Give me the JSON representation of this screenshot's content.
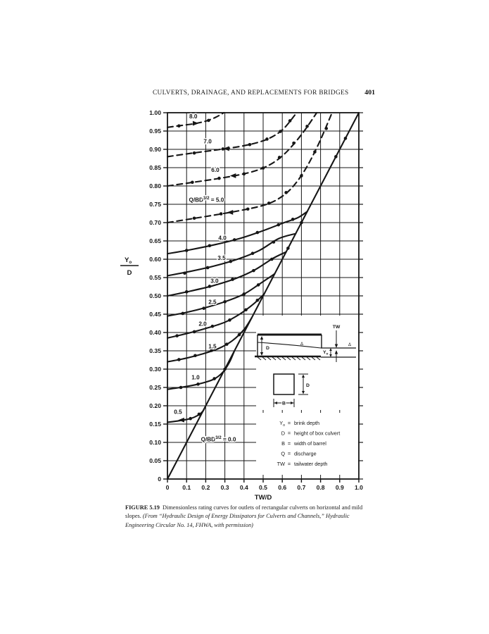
{
  "page": {
    "header": {
      "title": "CULVERTS, DRAINAGE, AND REPLACEMENTS FOR BRIDGES",
      "page_number": "401"
    },
    "caption": {
      "label": "FIGURE 5.19",
      "text": "Dimensionless rating curves for outlets of rectangular culverts on horizontal and mild slopes.",
      "source": "(From “Hydraulic Design of Energy Dissipators for Culverts and Channels,” Hydraulic Engineering Circular No. 14, FHWA, with permission)"
    }
  },
  "chart_data": {
    "type": "line",
    "xlabel": "TW/D",
    "ylabel": {
      "num": "Y",
      "num_sub": "o",
      "den": "D"
    },
    "xlim": [
      0,
      1
    ],
    "ylim": [
      0,
      1
    ],
    "x_gridstep": 0.1,
    "y_gridstep": 0.05,
    "grid": true,
    "xticks": [
      "0",
      "0.1",
      "0.2",
      "0.3",
      "0.4",
      "0.5",
      "0.6",
      "0.7",
      "0.8",
      "0.9",
      "1.0"
    ],
    "yticks": [
      "1.00",
      "0.95",
      "0.90",
      "0.85",
      "0.80",
      "0.75",
      "0.70",
      "0.65",
      "0.60",
      "0.55",
      "0.50",
      "0.45",
      "0.40",
      "0.35",
      "0.30",
      "0.25",
      "0.20",
      "0.15",
      "0.10",
      "0.05",
      "0"
    ],
    "series_param": "Q/BD^3/2",
    "series": [
      {
        "name": "0.0",
        "style": "solid",
        "label": {
          "x": 0.175,
          "y": 0.103,
          "pre": "Q/BD",
          "sup": "3/2",
          "post": " = 0.0",
          "anchor": "start"
        },
        "points": [
          [
            0,
            0
          ],
          [
            1,
            1
          ]
        ],
        "dots": [
          [
            0.63,
            0.63
          ],
          [
            0.7,
            0.7
          ],
          [
            0.88,
            0.88
          ],
          [
            0.93,
            0.93
          ]
        ],
        "arrows": []
      },
      {
        "name": "0.5",
        "style": "solid",
        "label": {
          "x": 0.055,
          "y": 0.178,
          "pre": "0.5"
        },
        "points": [
          [
            0,
            0.155
          ],
          [
            0.06,
            0.159
          ],
          [
            0.12,
            0.165
          ],
          [
            0.16,
            0.174
          ],
          [
            0.185,
            0.185
          ],
          [
            0.195,
            0.195
          ]
        ],
        "dots": [
          [
            0.12,
            0.165
          ],
          [
            0.165,
            0.177
          ]
        ],
        "arrows": [
          [
            0.075,
            0.161,
            -1
          ]
        ]
      },
      {
        "name": "1.0",
        "style": "solid",
        "label": {
          "x": 0.147,
          "y": 0.272,
          "pre": "1.0"
        },
        "points": [
          [
            0,
            0.245
          ],
          [
            0.08,
            0.251
          ],
          [
            0.16,
            0.259
          ],
          [
            0.24,
            0.272
          ],
          [
            0.29,
            0.292
          ],
          [
            0.325,
            0.32
          ],
          [
            0.35,
            0.35
          ]
        ],
        "dots": [
          [
            0.07,
            0.25
          ],
          [
            0.16,
            0.259
          ],
          [
            0.245,
            0.274
          ],
          [
            0.3,
            0.3
          ]
        ],
        "arrows": []
      },
      {
        "name": "1.5",
        "style": "solid",
        "label": {
          "x": 0.235,
          "y": 0.357,
          "pre": "1.5"
        },
        "points": [
          [
            0,
            0.32
          ],
          [
            0.09,
            0.329
          ],
          [
            0.18,
            0.341
          ],
          [
            0.27,
            0.357
          ],
          [
            0.34,
            0.378
          ],
          [
            0.4,
            0.408
          ],
          [
            0.44,
            0.44
          ]
        ],
        "dots": [
          [
            0.06,
            0.326
          ],
          [
            0.145,
            0.337
          ],
          [
            0.23,
            0.351
          ],
          [
            0.31,
            0.368
          ],
          [
            0.375,
            0.394
          ]
        ],
        "arrows": []
      },
      {
        "name": "2.0",
        "style": "solid",
        "label": {
          "x": 0.184,
          "y": 0.418,
          "pre": "2.0"
        },
        "points": [
          [
            0,
            0.385
          ],
          [
            0.1,
            0.397
          ],
          [
            0.2,
            0.411
          ],
          [
            0.3,
            0.428
          ],
          [
            0.38,
            0.451
          ],
          [
            0.45,
            0.478
          ],
          [
            0.505,
            0.505
          ]
        ],
        "dots": [
          [
            0.05,
            0.391
          ],
          [
            0.14,
            0.402
          ],
          [
            0.235,
            0.417
          ],
          [
            0.325,
            0.434
          ],
          [
            0.41,
            0.462
          ],
          [
            0.47,
            0.488
          ]
        ],
        "arrows": []
      },
      {
        "name": "2.5",
        "style": "solid",
        "label": {
          "x": 0.235,
          "y": 0.478,
          "pre": "2.5"
        },
        "points": [
          [
            0,
            0.445
          ],
          [
            0.1,
            0.455
          ],
          [
            0.2,
            0.468
          ],
          [
            0.3,
            0.484
          ],
          [
            0.4,
            0.505
          ],
          [
            0.48,
            0.532
          ],
          [
            0.56,
            0.56
          ]
        ],
        "dots": [
          [
            0.08,
            0.452
          ],
          [
            0.19,
            0.466
          ],
          [
            0.3,
            0.484
          ],
          [
            0.4,
            0.505
          ],
          [
            0.475,
            0.53
          ]
        ],
        "arrows": []
      },
      {
        "name": "3.0",
        "style": "solid",
        "label": {
          "x": 0.246,
          "y": 0.536,
          "pre": "3.0"
        },
        "points": [
          [
            0,
            0.5
          ],
          [
            0.12,
            0.513
          ],
          [
            0.24,
            0.528
          ],
          [
            0.36,
            0.548
          ],
          [
            0.46,
            0.572
          ],
          [
            0.55,
            0.602
          ],
          [
            0.62,
            0.62
          ]
        ],
        "dots": [
          [
            0.1,
            0.511
          ],
          [
            0.22,
            0.526
          ],
          [
            0.34,
            0.545
          ],
          [
            0.45,
            0.569
          ],
          [
            0.545,
            0.6
          ]
        ],
        "arrows": []
      },
      {
        "name": "3.5",
        "style": "solid",
        "label": {
          "x": 0.283,
          "y": 0.598,
          "pre": "3.5"
        },
        "points": [
          [
            0,
            0.555
          ],
          [
            0.12,
            0.567
          ],
          [
            0.24,
            0.581
          ],
          [
            0.36,
            0.599
          ],
          [
            0.48,
            0.624
          ],
          [
            0.58,
            0.656
          ],
          [
            0.67,
            0.67
          ]
        ],
        "dots": [
          [
            0.09,
            0.562
          ],
          [
            0.21,
            0.577
          ],
          [
            0.33,
            0.594
          ],
          [
            0.445,
            0.616
          ],
          [
            0.555,
            0.647
          ]
        ],
        "arrows": []
      },
      {
        "name": "4.0",
        "style": "solid",
        "label": {
          "x": 0.287,
          "y": 0.653,
          "pre": "4.0"
        },
        "points": [
          [
            0,
            0.615
          ],
          [
            0.12,
            0.626
          ],
          [
            0.25,
            0.64
          ],
          [
            0.38,
            0.657
          ],
          [
            0.5,
            0.678
          ],
          [
            0.61,
            0.7
          ],
          [
            0.68,
            0.713
          ],
          [
            0.73,
            0.73
          ]
        ],
        "dots": [
          [
            0.1,
            0.624
          ],
          [
            0.22,
            0.637
          ],
          [
            0.35,
            0.653
          ],
          [
            0.47,
            0.673
          ],
          [
            0.58,
            0.694
          ],
          [
            0.655,
            0.709
          ]
        ],
        "arrows": []
      },
      {
        "name": "5.0",
        "style": "dashed",
        "label": {
          "x": 0.112,
          "y": 0.757,
          "pre": "Q/BD",
          "sup": "3/2",
          "post": " = 5.0",
          "anchor": "start"
        },
        "points": [
          [
            0,
            0.7
          ],
          [
            0.12,
            0.71
          ],
          [
            0.25,
            0.721
          ],
          [
            0.38,
            0.733
          ],
          [
            0.5,
            0.747
          ],
          [
            0.58,
            0.765
          ],
          [
            0.65,
            0.795
          ],
          [
            0.72,
            0.845
          ],
          [
            0.79,
            0.915
          ],
          [
            0.86,
            1.0
          ]
        ],
        "dots": [
          [
            0.14,
            0.712
          ],
          [
            0.28,
            0.724
          ],
          [
            0.42,
            0.737
          ],
          [
            0.53,
            0.753
          ],
          [
            0.62,
            0.782
          ],
          [
            0.7,
            0.828
          ],
          [
            0.77,
            0.893
          ],
          [
            0.83,
            0.957
          ]
        ],
        "arrows": [
          [
            0.33,
            0.728,
            -1
          ]
        ]
      },
      {
        "name": "6.0",
        "style": "dashed",
        "label": {
          "x": 0.25,
          "y": 0.838,
          "pre": "6.0"
        },
        "points": [
          [
            0,
            0.8
          ],
          [
            0.12,
            0.809
          ],
          [
            0.25,
            0.819
          ],
          [
            0.38,
            0.831
          ],
          [
            0.48,
            0.845
          ],
          [
            0.56,
            0.866
          ],
          [
            0.63,
            0.897
          ],
          [
            0.71,
            0.947
          ],
          [
            0.78,
            1.0
          ]
        ],
        "dots": [
          [
            0.13,
            0.81
          ],
          [
            0.27,
            0.821
          ],
          [
            0.4,
            0.833
          ],
          [
            0.5,
            0.849
          ],
          [
            0.585,
            0.878
          ],
          [
            0.66,
            0.917
          ],
          [
            0.73,
            0.963
          ]
        ],
        "arrows": [
          [
            0.345,
            0.828,
            -1
          ]
        ]
      },
      {
        "name": "7.0",
        "style": "dashed",
        "label": {
          "x": 0.21,
          "y": 0.916,
          "pre": "7.0"
        },
        "points": [
          [
            0,
            0.88
          ],
          [
            0.12,
            0.889
          ],
          [
            0.25,
            0.898
          ],
          [
            0.38,
            0.908
          ],
          [
            0.48,
            0.92
          ],
          [
            0.55,
            0.935
          ],
          [
            0.61,
            0.958
          ],
          [
            0.675,
            1.0
          ]
        ],
        "dots": [
          [
            0.14,
            0.89
          ],
          [
            0.29,
            0.901
          ],
          [
            0.43,
            0.913
          ],
          [
            0.52,
            0.928
          ],
          [
            0.59,
            0.949
          ],
          [
            0.64,
            0.978
          ]
        ],
        "arrows": [
          [
            0.31,
            0.902,
            -1
          ]
        ]
      },
      {
        "name": "8.0",
        "style": "dashed",
        "label": {
          "x": 0.135,
          "y": 0.985,
          "pre": "8.0"
        },
        "points": [
          [
            0,
            0.96
          ],
          [
            0.07,
            0.965
          ],
          [
            0.14,
            0.97
          ],
          [
            0.2,
            0.977
          ],
          [
            0.25,
            0.987
          ],
          [
            0.295,
            1.0
          ]
        ],
        "dots": [
          [
            0.06,
            0.964
          ],
          [
            0.215,
            0.979
          ]
        ],
        "arrows": [
          [
            0.145,
            0.971,
            1
          ]
        ]
      }
    ],
    "inset": {
      "side_view": {
        "tw_label": "TW",
        "depth_label": "D",
        "brink_base": "Y",
        "brink_sub": "o",
        "surface_marker": "Δ"
      },
      "cross_section": {
        "height_label": "D",
        "width_label": "B"
      }
    },
    "legend": {
      "separator": "=",
      "rows": [
        {
          "base": "Y",
          "sub": "o",
          "definition": "brink depth"
        },
        {
          "base": "D",
          "sub": "",
          "definition": "height of box culvert"
        },
        {
          "base": "B",
          "sub": "",
          "definition": "width of barrel"
        },
        {
          "base": "Q",
          "sub": "",
          "definition": "discharge"
        },
        {
          "base": "TW",
          "sub": "",
          "definition": "tailwater depth"
        }
      ]
    }
  }
}
